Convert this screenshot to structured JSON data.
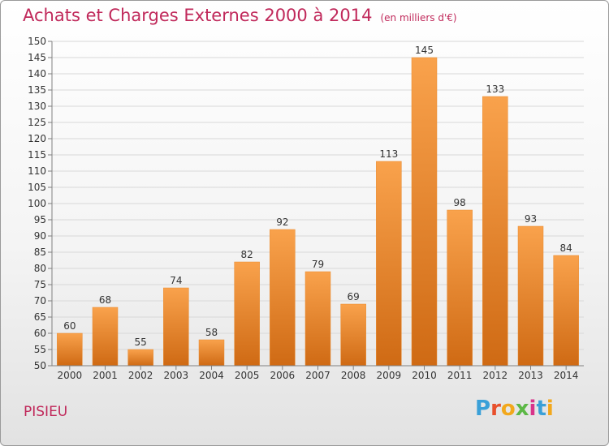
{
  "header": {
    "title": "Achats et Charges Externes 2000 à 2014",
    "subtitle": "(en milliers d'€)"
  },
  "footer": {
    "place": "PISIEU",
    "logo": "Proxiti",
    "logo_colors": [
      "#3aa0d8",
      "#e8502c",
      "#f2a81c",
      "#5cb846",
      "#d8348a",
      "#3aa0d8",
      "#f2a81c"
    ]
  },
  "colors": {
    "bar_top": "#f9a24c",
    "bar_bottom": "#cf6a14",
    "bar_side": "#e98a2e",
    "axis": "#808080",
    "grid": "#d8d8d8",
    "text": "#333333",
    "title": "#c0285a"
  },
  "chart_data": {
    "type": "bar",
    "categories": [
      "2000",
      "2001",
      "2002",
      "2003",
      "2004",
      "2005",
      "2006",
      "2007",
      "2008",
      "2009",
      "2010",
      "2011",
      "2012",
      "2013",
      "2014"
    ],
    "values": [
      60,
      68,
      55,
      74,
      58,
      82,
      92,
      79,
      69,
      113,
      145,
      98,
      133,
      93,
      84
    ],
    "ylim": [
      50,
      150
    ],
    "yticks": [
      50,
      55,
      60,
      65,
      70,
      75,
      80,
      85,
      90,
      95,
      100,
      105,
      110,
      115,
      120,
      125,
      130,
      135,
      140,
      145,
      150
    ],
    "grid": true,
    "data_labels": true
  }
}
